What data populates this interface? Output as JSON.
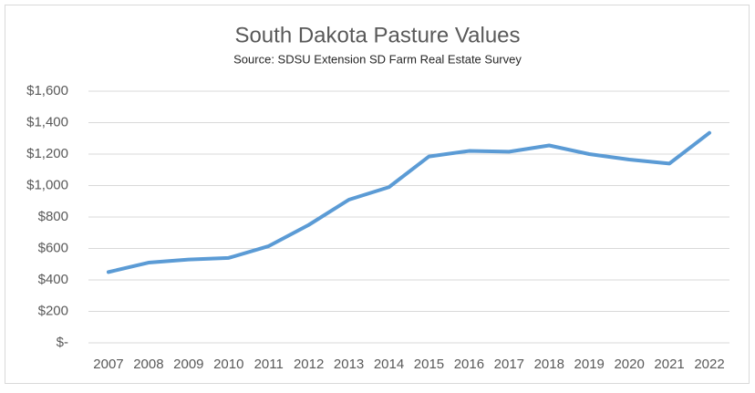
{
  "chart_data": {
    "type": "line",
    "title": "South Dakota Pasture Values",
    "subtitle": "Source: SDSU Extension SD Farm Real Estate Survey",
    "categories": [
      "2007",
      "2008",
      "2009",
      "2010",
      "2011",
      "2012",
      "2013",
      "2014",
      "2015",
      "2016",
      "2017",
      "2018",
      "2019",
      "2020",
      "2021",
      "2022"
    ],
    "series": [
      {
        "name": "Pasture Value",
        "color": "#5b9bd5",
        "values": [
          450,
          510,
          530,
          540,
          615,
          750,
          910,
          990,
          1185,
          1220,
          1215,
          1255,
          1200,
          1165,
          1140,
          1335
        ]
      }
    ],
    "ylim": [
      0,
      1600
    ],
    "yticks": [
      {
        "value": 0,
        "label": "$-"
      },
      {
        "value": 200,
        "label": "$200"
      },
      {
        "value": 400,
        "label": "$400"
      },
      {
        "value": 600,
        "label": "$600"
      },
      {
        "value": 800,
        "label": "$800"
      },
      {
        "value": 1000,
        "label": "$1,000"
      },
      {
        "value": 1200,
        "label": "$1,200"
      },
      {
        "value": 1400,
        "label": "$1,400"
      },
      {
        "value": 1600,
        "label": "$1,600"
      }
    ],
    "grid": true
  }
}
